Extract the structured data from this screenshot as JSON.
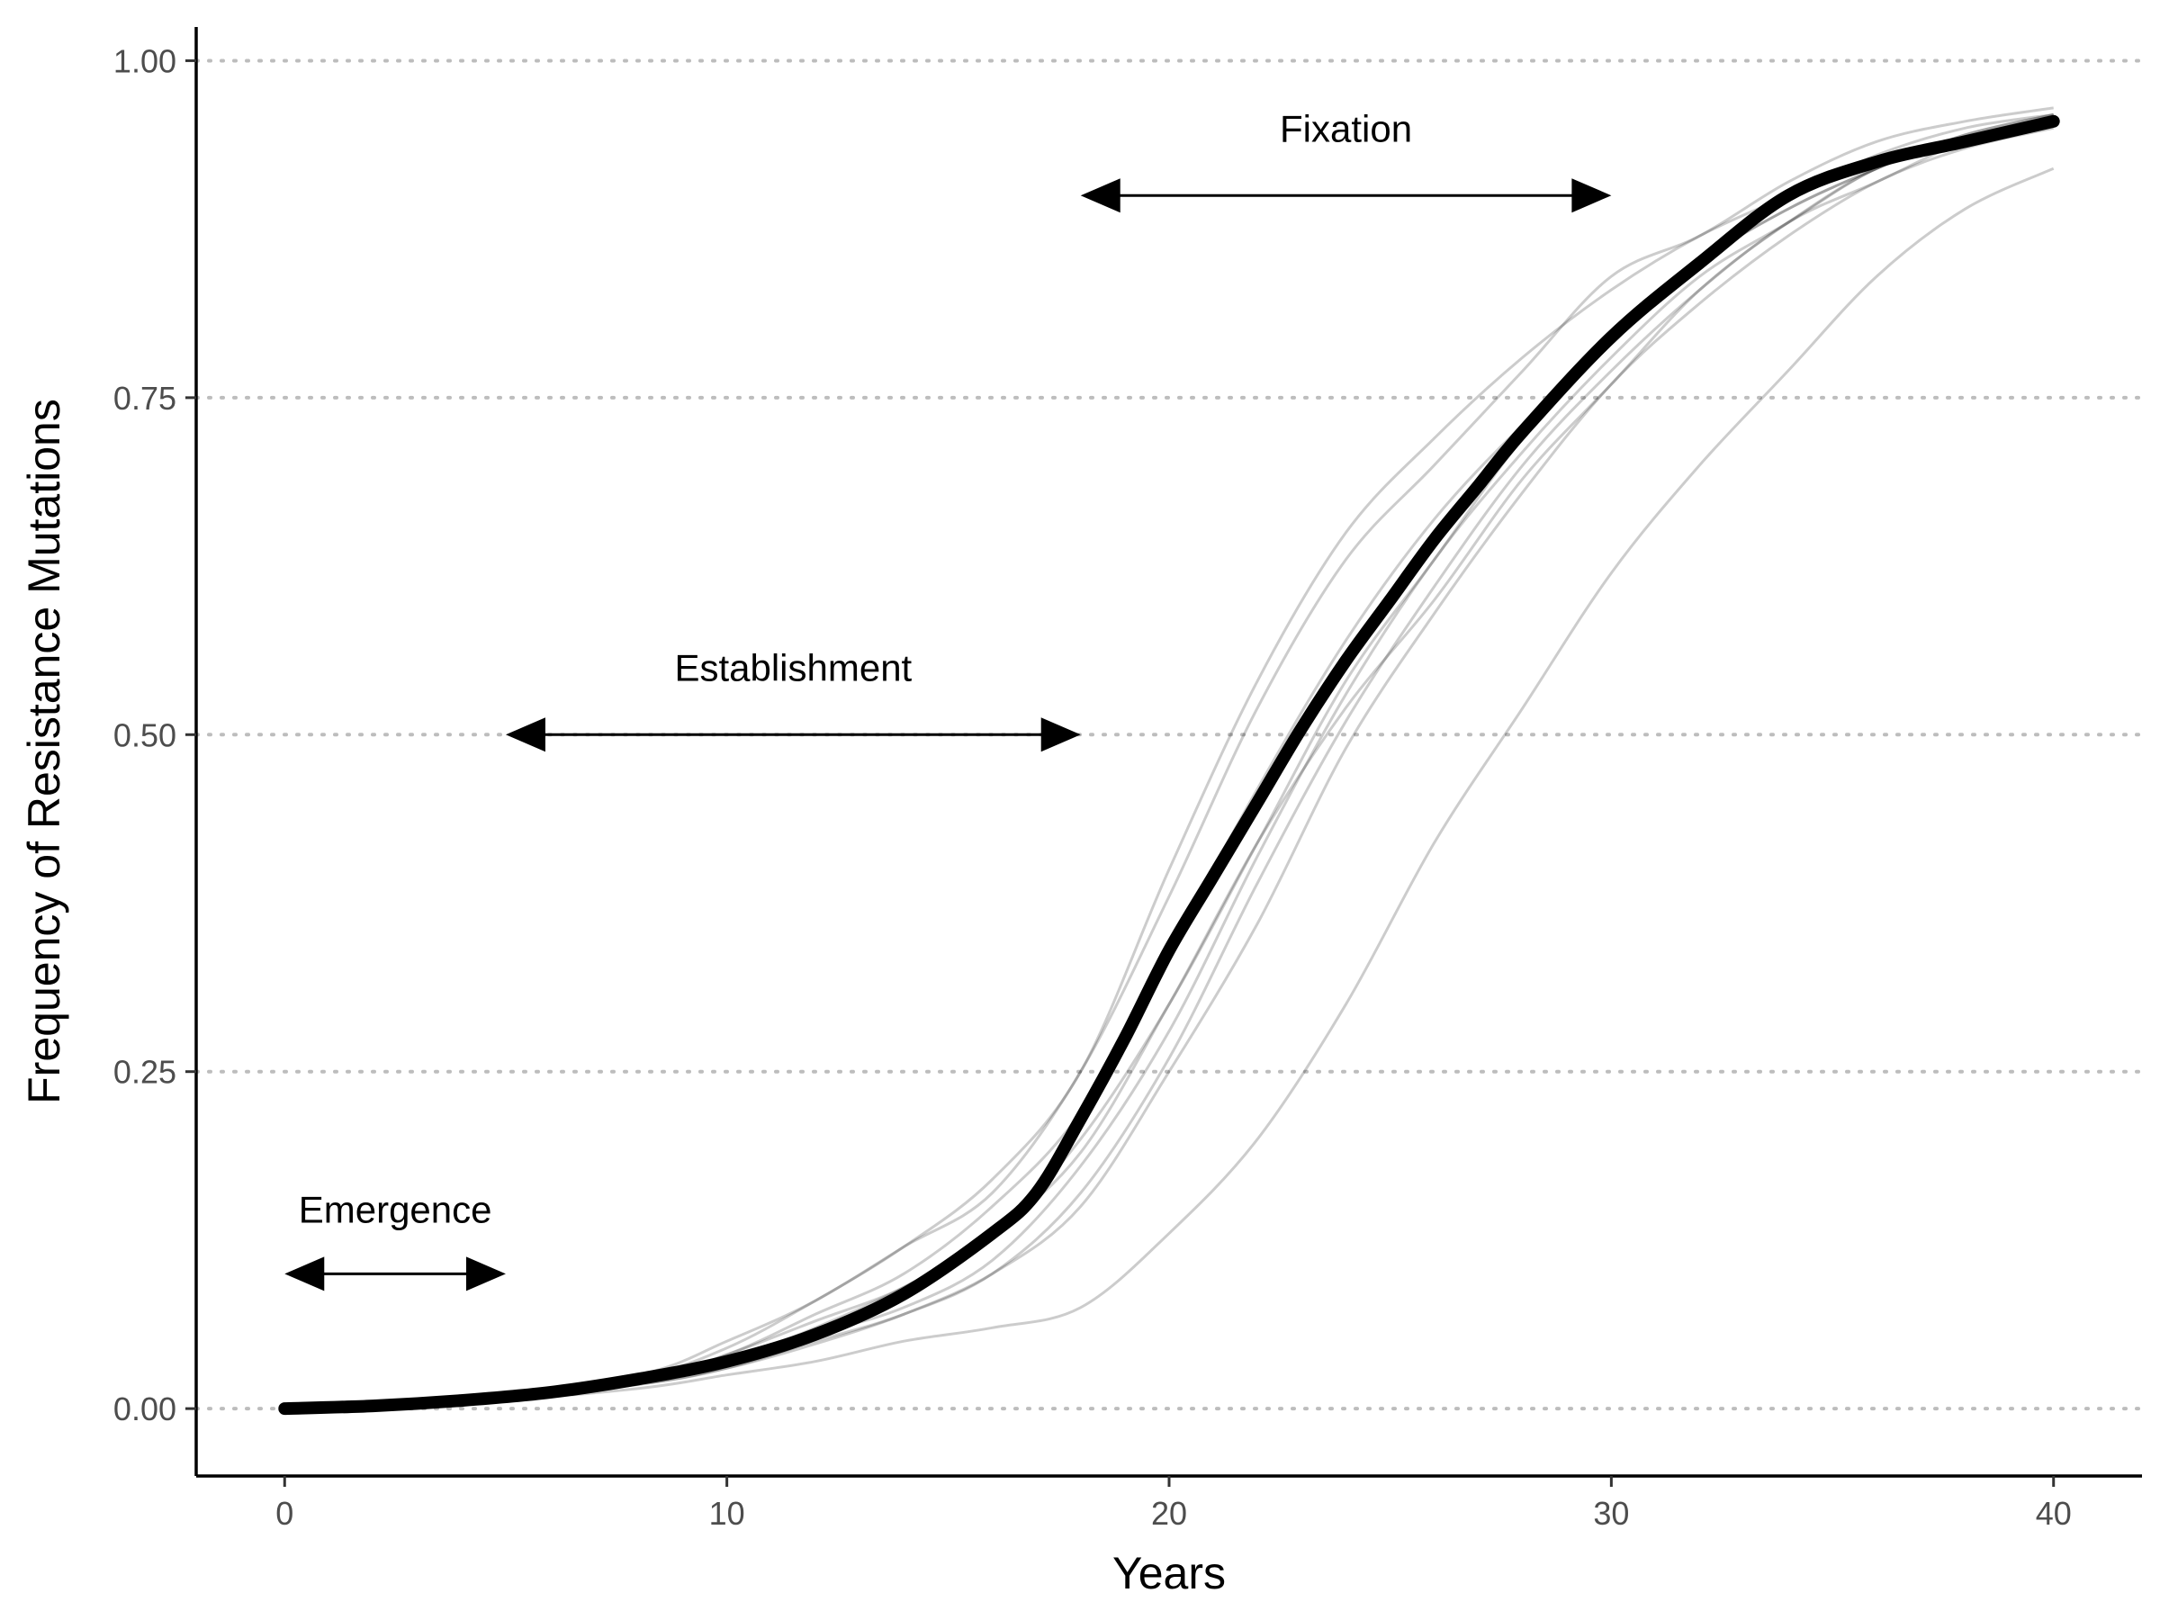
{
  "chart_data": {
    "type": "line",
    "title": "",
    "xlabel": "Years",
    "ylabel": "Frequency of Resistance Mutations",
    "xlim": [
      -2,
      42
    ],
    "ylim": [
      -0.05,
      1.025
    ],
    "x_ticks": [
      0,
      10,
      20,
      30,
      40
    ],
    "x_tick_labels": [
      "0",
      "10",
      "20",
      "30",
      "40"
    ],
    "y_ticks": [
      0,
      0.25,
      0.5,
      0.75,
      1
    ],
    "y_tick_labels": [
      "0.00",
      "0.25",
      "0.50",
      "0.75",
      "1.00"
    ],
    "grid": "horizontal dotted",
    "legend": "none",
    "mean_series": {
      "x": [
        0,
        2,
        4,
        6,
        8,
        10,
        12,
        14,
        16,
        17,
        18,
        19,
        20,
        21,
        22,
        23,
        24,
        25,
        26,
        27,
        28,
        30,
        32,
        34,
        36,
        38,
        40
      ],
      "y": [
        0.0,
        0.002,
        0.006,
        0.012,
        0.022,
        0.035,
        0.055,
        0.085,
        0.13,
        0.16,
        0.215,
        0.275,
        0.34,
        0.395,
        0.45,
        0.505,
        0.555,
        0.6,
        0.645,
        0.685,
        0.725,
        0.795,
        0.85,
        0.9,
        0.925,
        0.94,
        0.955
      ]
    },
    "simulations": [
      {
        "x": [
          0,
          4,
          8,
          10,
          12,
          14,
          16,
          18,
          20,
          22,
          24,
          26,
          28,
          30,
          32,
          34,
          36,
          38,
          40
        ],
        "y": [
          0.0,
          0.006,
          0.025,
          0.05,
          0.08,
          0.12,
          0.16,
          0.25,
          0.38,
          0.52,
          0.63,
          0.7,
          0.77,
          0.84,
          0.87,
          0.91,
          0.94,
          0.955,
          0.965
        ]
      },
      {
        "x": [
          0,
          4,
          8,
          10,
          12,
          14,
          16,
          18,
          20,
          22,
          24,
          26,
          28,
          30,
          32,
          34,
          36,
          38,
          40
        ],
        "y": [
          0.0,
          0.006,
          0.024,
          0.045,
          0.08,
          0.12,
          0.17,
          0.25,
          0.4,
          0.54,
          0.65,
          0.72,
          0.78,
          0.83,
          0.87,
          0.9,
          0.93,
          0.95,
          0.96
        ]
      },
      {
        "x": [
          0,
          4,
          8,
          10,
          12,
          14,
          16,
          18,
          20,
          22,
          24,
          26,
          28,
          30,
          32,
          34,
          36,
          38,
          40
        ],
        "y": [
          0.0,
          0.006,
          0.022,
          0.04,
          0.07,
          0.1,
          0.15,
          0.22,
          0.34,
          0.46,
          0.57,
          0.66,
          0.73,
          0.79,
          0.85,
          0.89,
          0.92,
          0.945,
          0.96
        ]
      },
      {
        "x": [
          0,
          4,
          8,
          10,
          12,
          14,
          16,
          18,
          20,
          22,
          24,
          26,
          28,
          30,
          32,
          34,
          36,
          38,
          40
        ],
        "y": [
          0.0,
          0.005,
          0.02,
          0.035,
          0.06,
          0.09,
          0.13,
          0.2,
          0.3,
          0.42,
          0.54,
          0.63,
          0.72,
          0.79,
          0.85,
          0.89,
          0.92,
          0.945,
          0.96
        ]
      },
      {
        "x": [
          0,
          4,
          8,
          10,
          12,
          14,
          16,
          18,
          20,
          22,
          24,
          26,
          28,
          30,
          32,
          34,
          36,
          38,
          40
        ],
        "y": [
          0.0,
          0.005,
          0.02,
          0.035,
          0.055,
          0.075,
          0.11,
          0.18,
          0.28,
          0.41,
          0.53,
          0.63,
          0.71,
          0.78,
          0.84,
          0.88,
          0.92,
          0.94,
          0.955
        ]
      },
      {
        "x": [
          0,
          4,
          8,
          10,
          12,
          14,
          16,
          18,
          20,
          22,
          24,
          26,
          28,
          30,
          32,
          34,
          36,
          38,
          40
        ],
        "y": [
          0.0,
          0.005,
          0.018,
          0.03,
          0.05,
          0.07,
          0.1,
          0.16,
          0.26,
          0.39,
          0.51,
          0.61,
          0.7,
          0.77,
          0.83,
          0.88,
          0.91,
          0.94,
          0.955
        ]
      },
      {
        "x": [
          0,
          4,
          8,
          10,
          12,
          14,
          16,
          18,
          20,
          22,
          24,
          26,
          28,
          30,
          32,
          34,
          36,
          38,
          40
        ],
        "y": [
          0.0,
          0.005,
          0.018,
          0.03,
          0.048,
          0.07,
          0.1,
          0.15,
          0.25,
          0.36,
          0.49,
          0.59,
          0.68,
          0.76,
          0.82,
          0.87,
          0.91,
          0.935,
          0.95
        ]
      },
      {
        "x": [
          0,
          4,
          8,
          10,
          12,
          14,
          16,
          18,
          20,
          22,
          24,
          26,
          28,
          30,
          32,
          34,
          36,
          38,
          40
        ],
        "y": [
          0.0,
          0.005,
          0.02,
          0.04,
          0.065,
          0.09,
          0.13,
          0.19,
          0.3,
          0.42,
          0.52,
          0.6,
          0.69,
          0.76,
          0.83,
          0.88,
          0.92,
          0.94,
          0.955
        ]
      },
      {
        "x": [
          0,
          4,
          8,
          10,
          12,
          14,
          16,
          18,
          20,
          22,
          24,
          26,
          28,
          30,
          32,
          34,
          36,
          38,
          40
        ],
        "y": [
          0.0,
          0.004,
          0.015,
          0.025,
          0.035,
          0.05,
          0.06,
          0.075,
          0.13,
          0.2,
          0.3,
          0.42,
          0.52,
          0.62,
          0.7,
          0.77,
          0.84,
          0.89,
          0.92
        ]
      }
    ],
    "annotations": [
      {
        "text": "Emergence",
        "label_x": 2.5,
        "label_y": 0.138,
        "arrow_from": 0,
        "arrow_to": 5,
        "arrow_y": 0.1
      },
      {
        "text": "Establishment",
        "label_x": 11.5,
        "label_y": 0.54,
        "arrow_from": 5,
        "arrow_to": 18,
        "arrow_y": 0.5
      },
      {
        "text": "Fixation",
        "label_x": 24,
        "label_y": 0.94,
        "arrow_from": 18,
        "arrow_to": 30,
        "arrow_y": 0.9
      }
    ]
  }
}
